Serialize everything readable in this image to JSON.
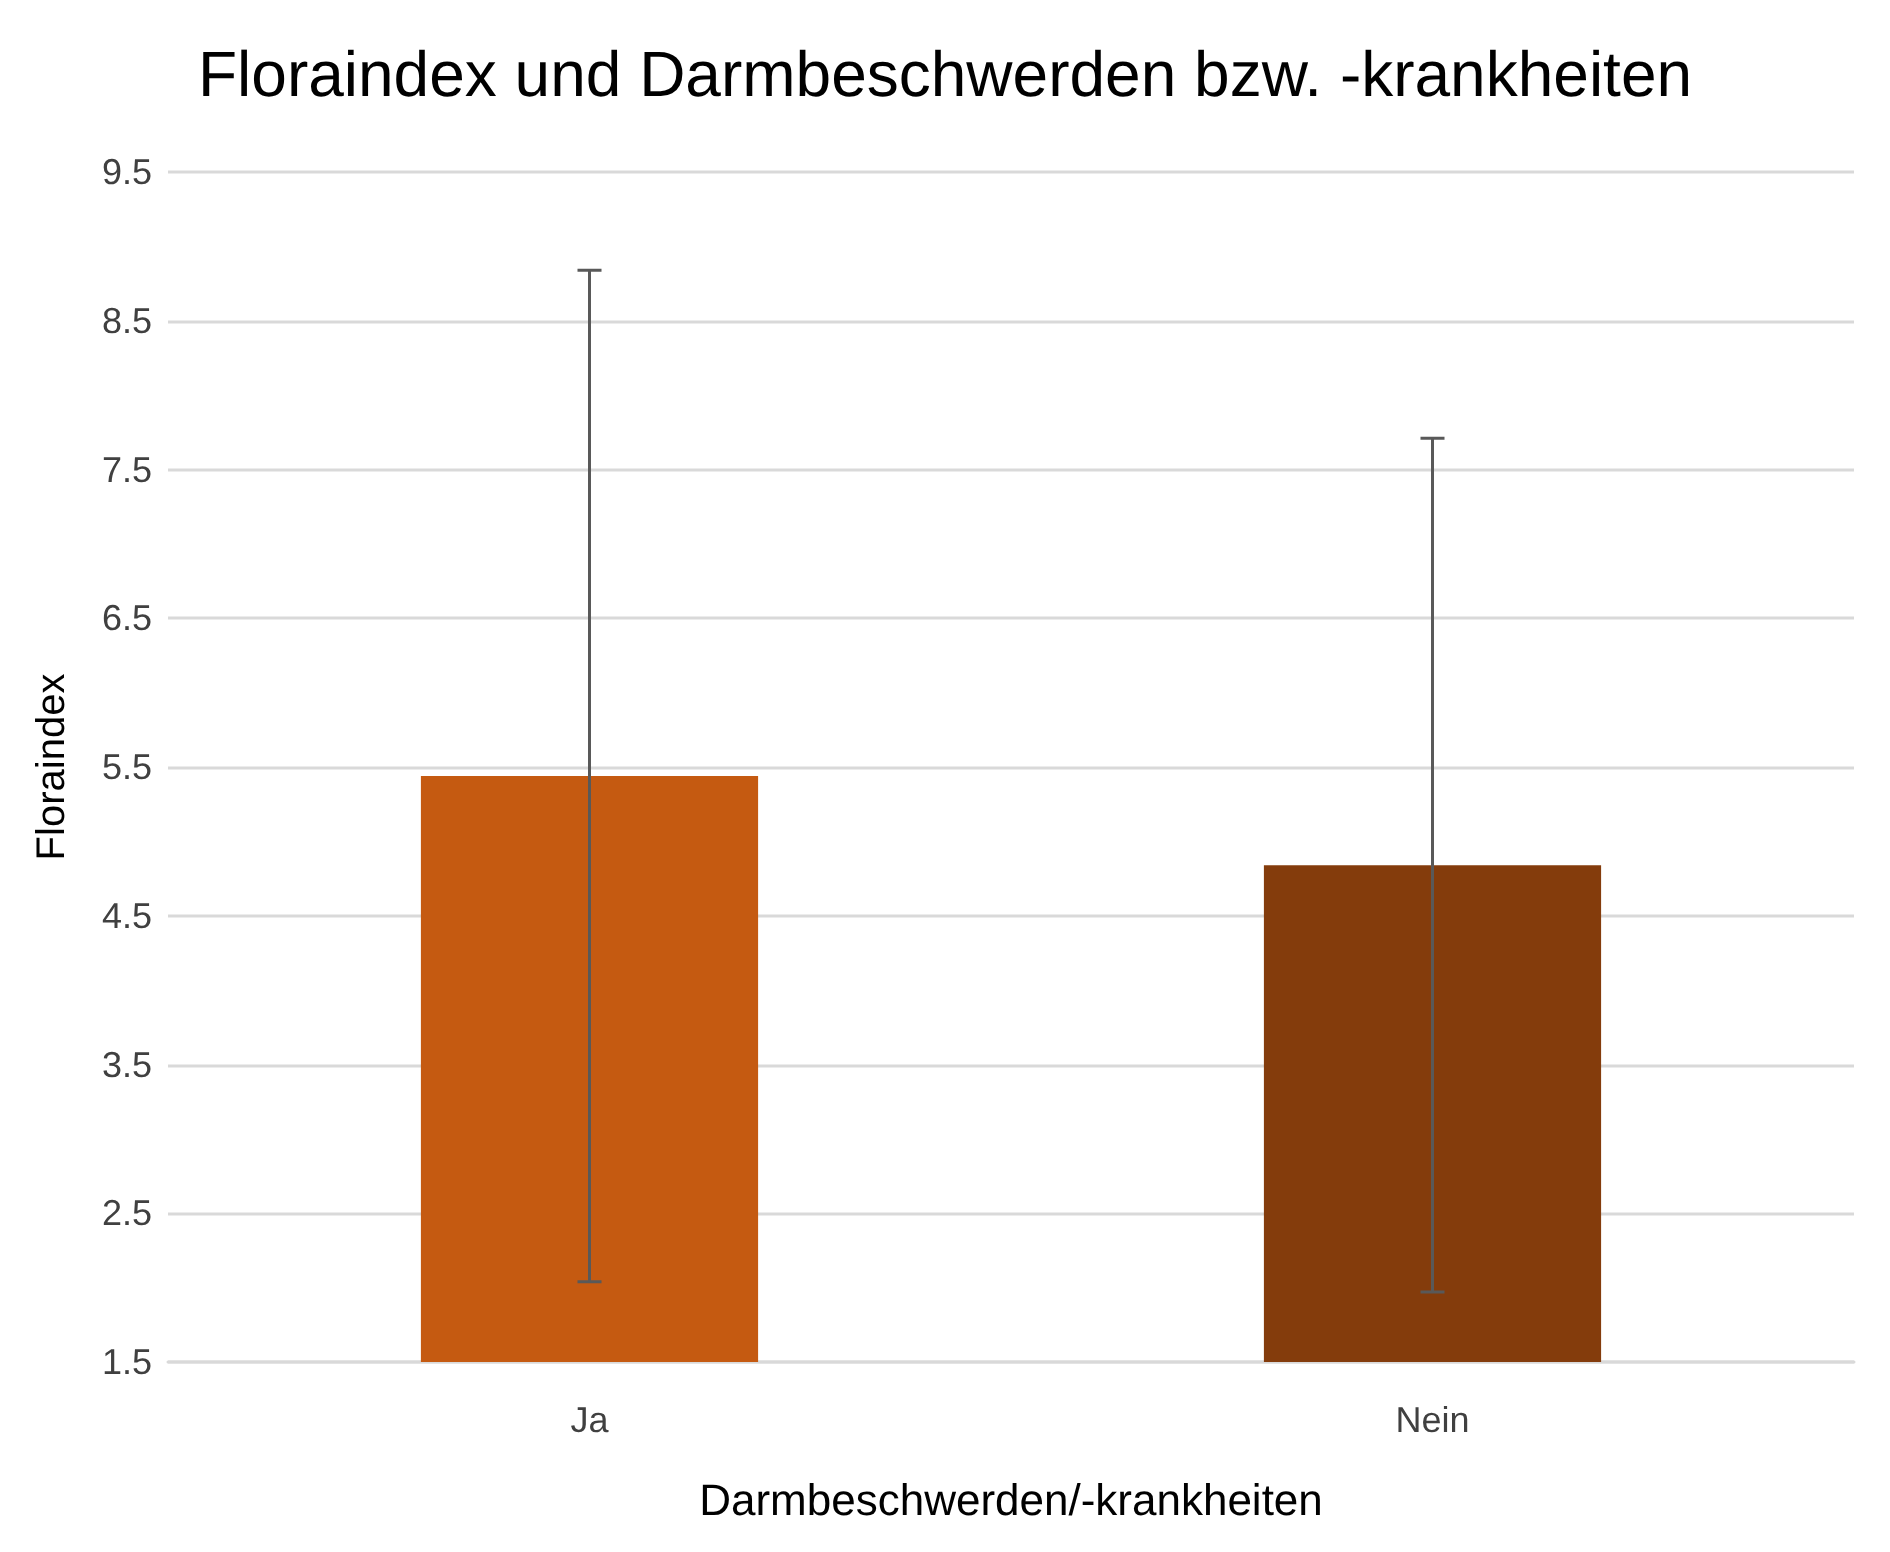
{
  "chart_data": {
    "type": "bar",
    "title": "Floraindex und Darmbeschwerden bzw. -krankheiten",
    "xlabel": "Darmbeschwerden/-krankheiten",
    "ylabel": "Floraindex",
    "categories": [
      "Ja",
      "Nein"
    ],
    "values": [
      5.44,
      4.84
    ],
    "colors": [
      "#c55a11",
      "#843c0c"
    ],
    "errors": [
      3.4,
      2.87
    ],
    "ylim": [
      1.5,
      9.5
    ],
    "yticks": [
      1.5,
      2.5,
      3.5,
      4.5,
      5.5,
      6.5,
      7.5,
      8.5,
      9.5
    ],
    "grid": "y"
  }
}
